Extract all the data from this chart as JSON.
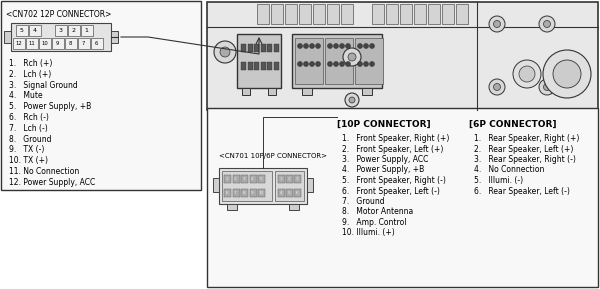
{
  "bg_color": "#ffffff",
  "cn702_title": "<CN702 12P CONNECTOR>",
  "cn702_items": [
    "1.   Rch (+)",
    "2.   Lch (+)",
    "3.   Signal Ground",
    "4.   Mute",
    "5.   Power Supply, +B",
    "6.   Rch (-)",
    "7.   Lch (-)",
    "8.   Ground",
    "9.   TX (-)",
    "10. TX (+)",
    "11. No Connection",
    "12. Power Supply, ACC"
  ],
  "cn701_title": "<CN701 10P/6P CONNECTOR>",
  "p10_title": "[10P CONNECTOR]",
  "p10_items": [
    "1.   Front Speaker, Right (+)",
    "2.   Front Speaker, Left (+)",
    "3.   Power Supply, ACC",
    "4.   Power Supply, +B",
    "5.   Front Speaker, Right (-)",
    "6.   Front Speaker, Left (-)",
    "7.   Ground",
    "8.   Motor Antenna",
    "9.   Amp. Control",
    "10. Illumi. (+)"
  ],
  "p6_title": "[6P CONNECTOR]",
  "p6_items": [
    "1.   Rear Speaker, Right (+)",
    "2.   Rear Speaker, Left (+)",
    "3.   Rear Speaker, Right (-)",
    "4.   No Connection",
    "5.   Illumi. (-)",
    "6.   Rear Speaker, Left (-)"
  ],
  "text_color": "#000000",
  "gray_dark": "#333333",
  "gray_med": "#888888",
  "gray_light": "#cccccc",
  "box_bg": "#f8f8f8"
}
